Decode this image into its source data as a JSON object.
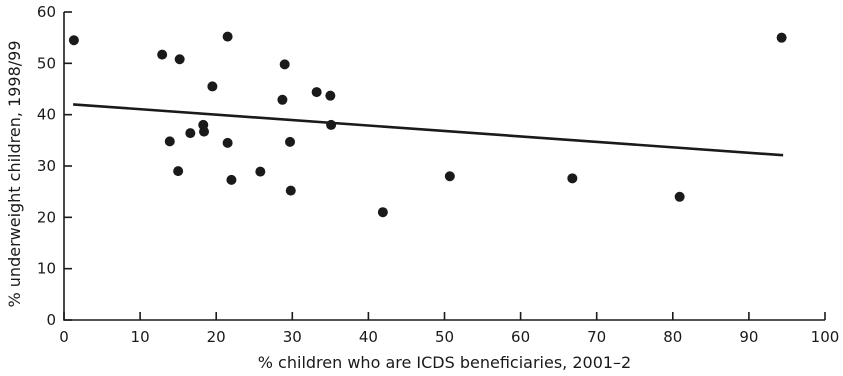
{
  "chart_data": {
    "type": "scatter",
    "title": "",
    "xlabel": "% children who are ICDS beneficiaries, 2001–2",
    "ylabel": "% underweight children, 1998/99",
    "xlim": [
      0,
      100
    ],
    "ylim": [
      0,
      60
    ],
    "xticks": [
      0,
      10,
      20,
      30,
      40,
      50,
      60,
      70,
      80,
      90,
      100
    ],
    "yticks": [
      0,
      10,
      20,
      30,
      40,
      50,
      60
    ],
    "grid": false,
    "colors": {
      "points": "#1a1a1a",
      "trend": "#1a1a1a",
      "axes": "#1a1a1a"
    },
    "series": [
      {
        "points": [
          [
            1.3,
            54.5
          ],
          [
            12.9,
            51.7
          ],
          [
            15.2,
            50.8
          ],
          [
            21.5,
            55.2
          ],
          [
            29.0,
            49.8
          ],
          [
            19.5,
            45.5
          ],
          [
            28.7,
            42.9
          ],
          [
            33.2,
            44.4
          ],
          [
            35.0,
            43.7
          ],
          [
            35.1,
            38.0
          ],
          [
            18.3,
            38.0
          ],
          [
            16.6,
            36.4
          ],
          [
            18.4,
            36.7
          ],
          [
            13.9,
            34.8
          ],
          [
            21.5,
            34.5
          ],
          [
            29.7,
            34.7
          ],
          [
            15.0,
            29.0
          ],
          [
            22.0,
            27.3
          ],
          [
            25.8,
            28.9
          ],
          [
            29.8,
            25.2
          ],
          [
            41.9,
            21.0
          ],
          [
            50.7,
            28.0
          ],
          [
            66.8,
            27.6
          ],
          [
            80.9,
            24.0
          ],
          [
            94.3,
            55.0
          ]
        ]
      }
    ],
    "trendline": {
      "x": [
        1.2,
        94.5
      ],
      "y": [
        42.0,
        32.1
      ]
    }
  }
}
